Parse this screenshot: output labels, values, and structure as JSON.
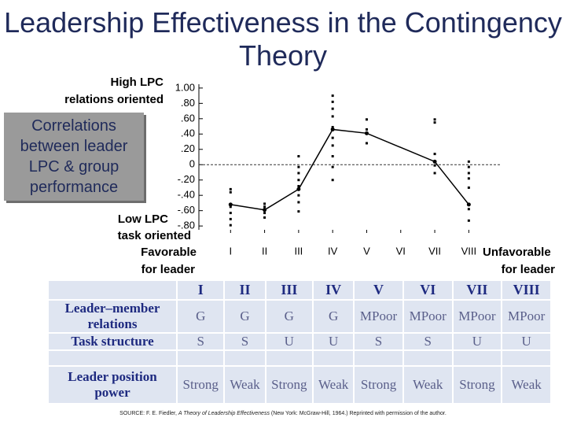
{
  "chart_data": {
    "type": "line",
    "title": "Leadership Effectiveness in the Contingency Theory",
    "annotation": "Correlations between leader LPC & group performance",
    "high_label": [
      "High LPC",
      "relations oriented"
    ],
    "low_label": [
      "Low LPC",
      "task oriented"
    ],
    "favorable_label": [
      "Favorable",
      "for leader"
    ],
    "unfavorable_label": [
      "Unfavorable",
      "for leader"
    ],
    "x": [
      1,
      2,
      3,
      4,
      5,
      7,
      8
    ],
    "values": [
      -0.52,
      -0.59,
      -0.32,
      0.46,
      0.41,
      0.04,
      -0.52
    ],
    "color": "#000000",
    "points": {
      "x": [
        1,
        1,
        1,
        1,
        1,
        1,
        2,
        2,
        2,
        2,
        3,
        3,
        3,
        3,
        3,
        3,
        3,
        3,
        4,
        4,
        4,
        4,
        4,
        4,
        4,
        4,
        4,
        4,
        5,
        5,
        5,
        7,
        7,
        7,
        7,
        7,
        7,
        8,
        8,
        8,
        8,
        8,
        8,
        8
      ],
      "values": [
        -0.32,
        -0.36,
        -0.55,
        -0.63,
        -0.71,
        -0.79,
        -0.51,
        -0.55,
        -0.63,
        -0.69,
        0.11,
        -0.03,
        -0.11,
        -0.2,
        -0.28,
        -0.4,
        -0.49,
        -0.61,
        0.9,
        0.82,
        0.73,
        0.63,
        0.49,
        0.35,
        0.25,
        0.11,
        -0.03,
        -0.2,
        0.59,
        0.46,
        0.28,
        0.59,
        0.55,
        0.14,
        0.04,
        -0.01,
        -0.11,
        0.04,
        -0.03,
        -0.11,
        -0.18,
        -0.3,
        -0.58,
        -0.73
      ],
      "color": "#000000"
    },
    "reference_line": 0,
    "xlim": [
      0,
      8.5
    ],
    "xticks": [
      {
        "value": 1,
        "label": "I"
      },
      {
        "value": 2,
        "label": "II"
      },
      {
        "value": 3,
        "label": "III"
      },
      {
        "value": 4,
        "label": "IV"
      },
      {
        "value": 5,
        "label": "V"
      },
      {
        "value": 6,
        "label": "VI"
      },
      {
        "value": 7,
        "label": "VII"
      },
      {
        "value": 8,
        "label": "VIII"
      }
    ],
    "ylim": [
      -0.85,
      1.05
    ],
    "yticks": [
      {
        "value": 1,
        "label": "1.00"
      },
      {
        "value": 0.8,
        "label": ".80"
      },
      {
        "value": 0.6,
        "label": ".60"
      },
      {
        "value": 0.4,
        "label": ".40"
      },
      {
        "value": 0.2,
        "label": ".20"
      },
      0,
      {
        "value": -0.2,
        "label": "-.20"
      },
      {
        "value": -0.4,
        "label": "-.40"
      },
      {
        "value": -0.6,
        "label": "-.60"
      },
      {
        "value": -0.8,
        "label": "-.80"
      }
    ]
  },
  "table": {
    "header": [
      "I",
      "II",
      "III",
      "IV",
      "V",
      "VI",
      "VII",
      "VIII"
    ],
    "rows": [
      [
        "Leader–member relations",
        "G",
        "G",
        "G",
        "G",
        "MPoor",
        "MPoor",
        "MPoor",
        "MPoor"
      ],
      [
        "Task structure",
        "S",
        "S",
        "U",
        "U",
        "S",
        "S",
        "U",
        "U"
      ],
      [
        "Leader position power",
        "Strong",
        "Weak",
        "Strong",
        "Weak",
        "Strong",
        "Weak",
        "Strong",
        "Weak"
      ]
    ]
  },
  "source": [
    "SOURCE: F. E. Fiedler, ",
    "A Theory of Leadership Effectiveness",
    " (New York: McGraw-Hill, 1964.) Reprinted with permission of the author."
  ]
}
